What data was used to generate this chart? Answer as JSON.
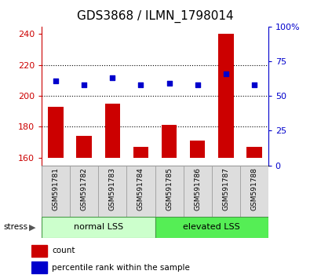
{
  "title": "GDS3868 / ILMN_1798014",
  "categories": [
    "GSM591781",
    "GSM591782",
    "GSM591783",
    "GSM591784",
    "GSM591785",
    "GSM591786",
    "GSM591787",
    "GSM591788"
  ],
  "red_values": [
    193,
    174,
    195,
    167,
    181,
    171,
    240,
    167
  ],
  "blue_pct": [
    61,
    58,
    63,
    58,
    59,
    58,
    66,
    58
  ],
  "ylim_left": [
    155,
    245
  ],
  "ylim_right": [
    0,
    100
  ],
  "yticks_left": [
    160,
    180,
    200,
    220,
    240
  ],
  "yticks_right": [
    0,
    25,
    50,
    75,
    100
  ],
  "group1_label": "normal LSS",
  "group2_label": "elevated LSS",
  "stress_label": "stress",
  "legend1_label": "count",
  "legend2_label": "percentile rank within the sample",
  "bar_color": "#cc0000",
  "dot_color": "#0000cc",
  "group1_color": "#ccffcc",
  "group2_color": "#55ee55",
  "bar_bottom": 160,
  "bar_width": 0.55,
  "left_tick_color": "#cc0000",
  "right_tick_color": "#0000cc",
  "title_fontsize": 11,
  "axis_fontsize": 8,
  "cat_fontsize": 6.5,
  "group_fontsize": 8,
  "legend_fontsize": 7.5
}
